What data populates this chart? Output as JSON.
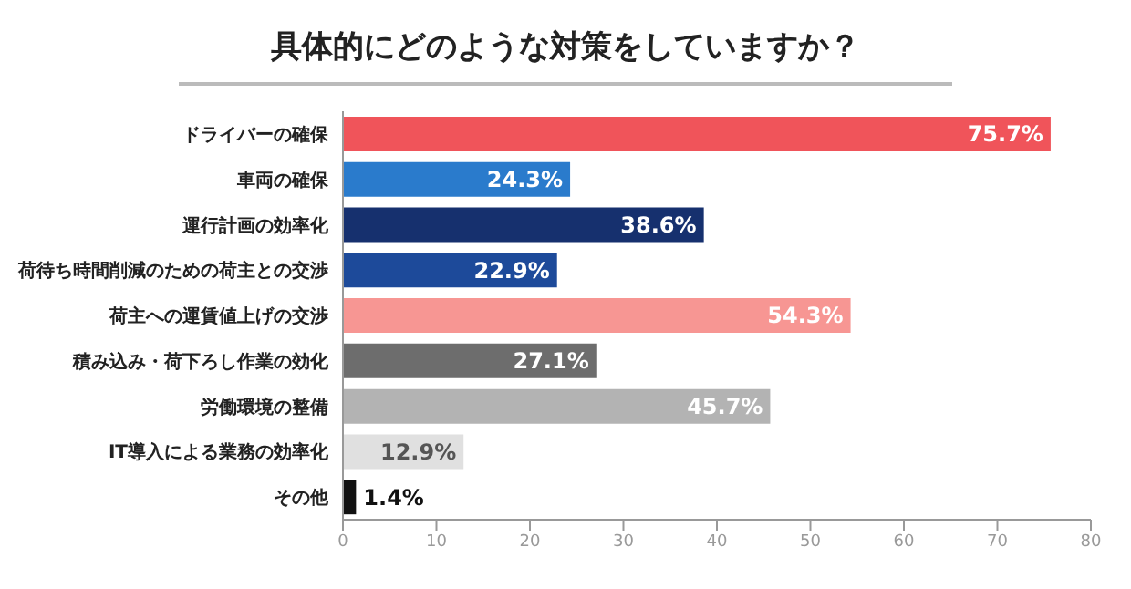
{
  "chart_data": {
    "type": "bar",
    "orientation": "horizontal",
    "title": "具体的にどのような対策をしていますか？",
    "categories": [
      "ドライバーの確保",
      "車両の確保",
      "運行計画の効率化",
      "荷待ち時間削減のための荷主との交渉",
      "荷主への運賃値上げの交渉",
      "積み込み・荷下ろし作業の効化",
      "労働環境の整備",
      "IT導入による業務の効率化",
      "その他"
    ],
    "values": [
      75.7,
      24.3,
      38.6,
      22.9,
      54.3,
      27.1,
      45.7,
      12.9,
      1.4
    ],
    "colors": [
      "#f0545a",
      "#2a7bcc",
      "#16306e",
      "#1d4a9a",
      "#f79693",
      "#6d6d6d",
      "#b3b3b3",
      "#e0e0e0",
      "#111111"
    ],
    "value_labels": [
      "75.7%",
      "24.3%",
      "38.6%",
      "22.9%",
      "54.3%",
      "27.1%",
      "45.7%",
      "12.9%",
      "1.4%"
    ],
    "xlim": [
      0,
      80
    ],
    "xticks": [
      0,
      10,
      20,
      30,
      40,
      50,
      60,
      70,
      80
    ],
    "grid": false,
    "legend": false
  }
}
